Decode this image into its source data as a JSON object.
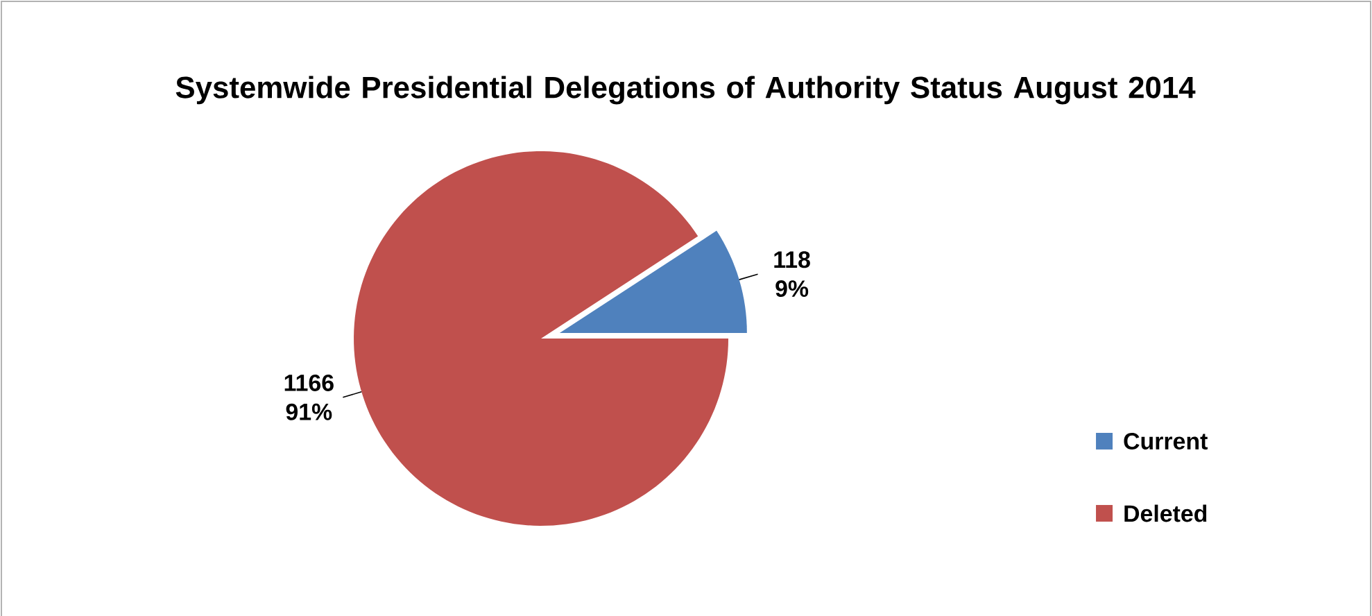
{
  "chart_data": {
    "type": "pie",
    "title": "Systemwide Presidential Delegations of Authority Status August 2014",
    "categories": [
      "Current",
      "Deleted"
    ],
    "values": [
      118,
      1166
    ],
    "value_labels": [
      "118 9%",
      "1166 91%"
    ],
    "colors": [
      "#4f81bd",
      "#c0504d"
    ],
    "legend": "right"
  }
}
